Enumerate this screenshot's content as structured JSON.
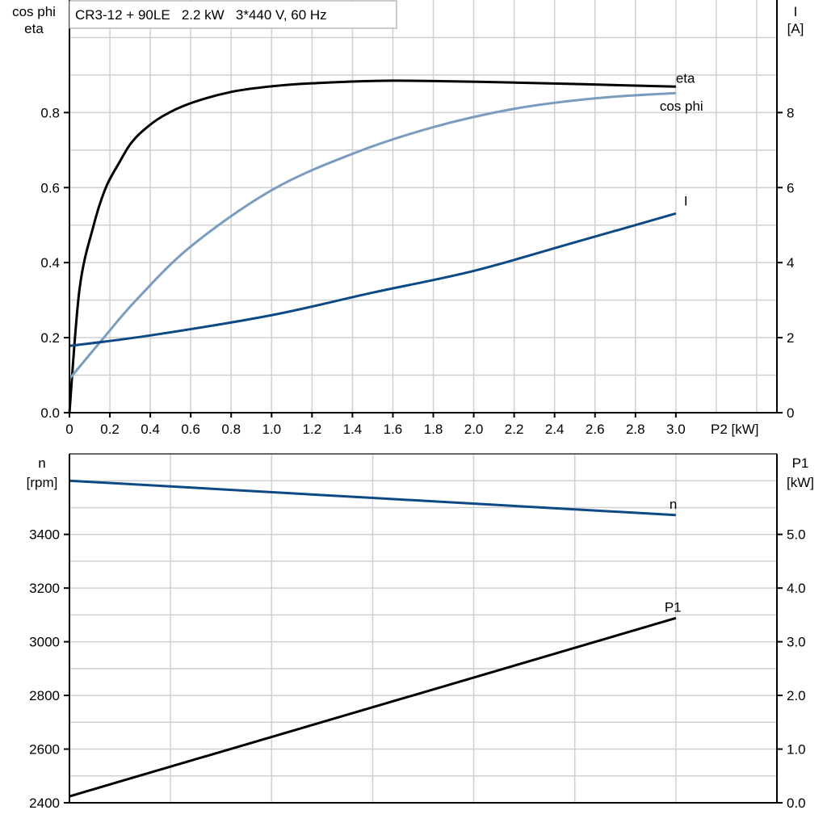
{
  "chart_data": [
    {
      "type": "line",
      "title": "CR3-12 + 90LE   2.2 kW   3*440 V, 60 Hz",
      "xlabel": "P2 [kW]",
      "ylabel_left": [
        "cos phi",
        "eta"
      ],
      "ylabel_right": [
        "I",
        "[A]"
      ],
      "xlim": [
        0,
        3.5
      ],
      "ylim_left": [
        0,
        1.1
      ],
      "ylim_right": [
        0,
        11
      ],
      "grid": true,
      "x_ticks": [
        "0",
        "0.2",
        "0.4",
        "0.6",
        "0.8",
        "1.0",
        "1.2",
        "1.4",
        "1.6",
        "1.8",
        "2.0",
        "2.2",
        "2.4",
        "2.6",
        "2.8",
        "3.0"
      ],
      "y_ticks_left": [
        "0.0",
        "0.2",
        "0.4",
        "0.6",
        "0.8"
      ],
      "y_ticks_right": [
        "0",
        "2",
        "4",
        "6",
        "8"
      ],
      "series": [
        {
          "name": "eta",
          "axis": "left",
          "color": "#000000",
          "x": [
            0,
            0.05,
            0.12,
            0.18,
            0.25,
            0.3,
            0.36,
            0.46,
            0.6,
            0.8,
            1.0,
            1.2,
            1.6,
            2.2,
            3.0
          ],
          "y": [
            0,
            0.33,
            0.5,
            0.6,
            0.67,
            0.715,
            0.75,
            0.79,
            0.825,
            0.855,
            0.87,
            0.878,
            0.885,
            0.88,
            0.869
          ]
        },
        {
          "name": "cos phi",
          "axis": "left",
          "color": "#7a9cbf",
          "x": [
            0,
            0.17,
            0.33,
            0.6,
            1.0,
            1.4,
            1.8,
            2.2,
            2.6,
            3.0
          ],
          "y": [
            0.09,
            0.2,
            0.3,
            0.443,
            0.593,
            0.69,
            0.761,
            0.81,
            0.838,
            0.852
          ]
        },
        {
          "name": "I",
          "axis": "right",
          "color": "#0d4a85",
          "x": [
            0,
            0.4,
            1.0,
            1.5,
            2.0,
            2.5,
            3.0
          ],
          "y": [
            1.78,
            2.06,
            2.6,
            3.2,
            3.78,
            4.54,
            5.31
          ]
        }
      ]
    },
    {
      "type": "line",
      "xlim": [
        0,
        3.5
      ],
      "ylabel_left": [
        "n",
        "[rpm]"
      ],
      "ylabel_right": [
        "P1",
        "[kW]"
      ],
      "ylim_left": [
        2400,
        3700
      ],
      "ylim_right": [
        0,
        6.5
      ],
      "grid": true,
      "y_ticks_left": [
        "2400",
        "2600",
        "2800",
        "3000",
        "3200",
        "3400"
      ],
      "y_ticks_right": [
        "0.0",
        "1.0",
        "2.0",
        "3.0",
        "4.0",
        "5.0"
      ],
      "series": [
        {
          "name": "n",
          "axis": "left",
          "color": "#0d4a85",
          "x": [
            0,
            3.0
          ],
          "y": [
            3600,
            3472
          ]
        },
        {
          "name": "P1",
          "axis": "right",
          "color": "#000000",
          "x": [
            0,
            3.0
          ],
          "y": [
            0.12,
            3.44
          ]
        }
      ]
    }
  ]
}
